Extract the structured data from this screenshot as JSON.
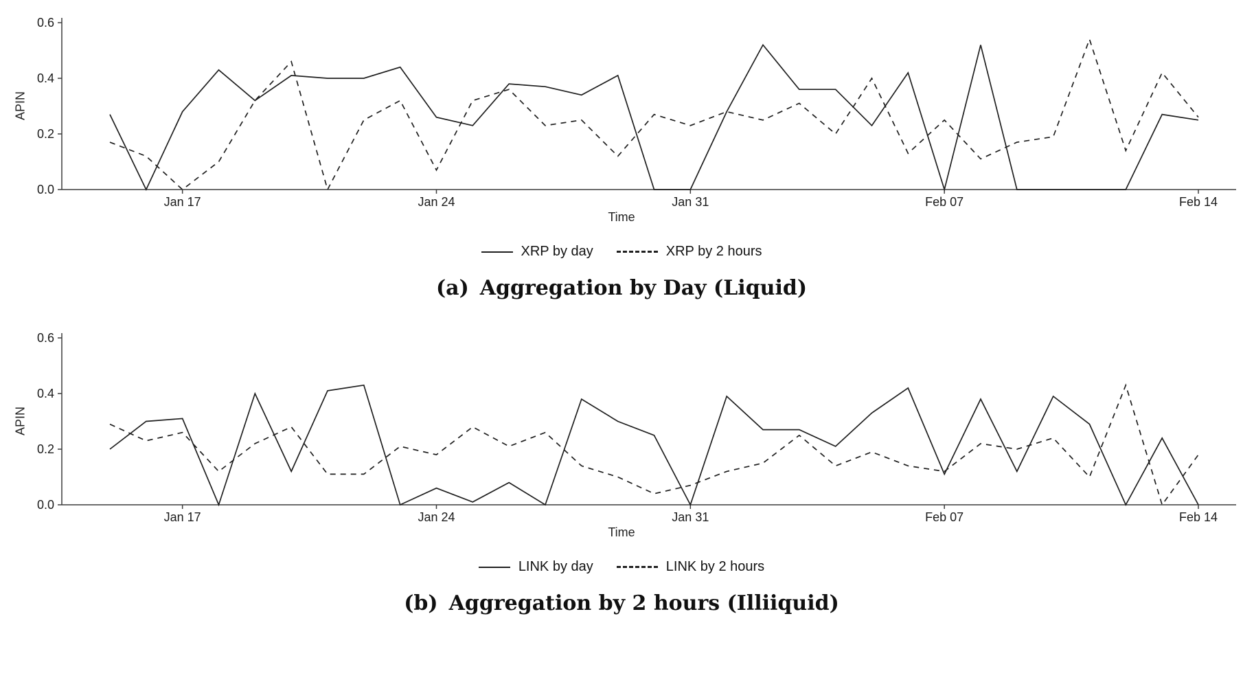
{
  "colors": {
    "line": "#1f1f1f",
    "axis": "#3c3c3c",
    "text": "#1a1a1a"
  },
  "chart_data": [
    {
      "type": "line",
      "panel": "a",
      "caption_prefix": "(a)",
      "caption": "Aggregation by Day (Liquid)",
      "xlabel": "Time",
      "ylabel": "APIN",
      "ylim": [
        0,
        0.6
      ],
      "x_start_date": "Jan 15",
      "x_step_days": 1,
      "yticks": [
        {
          "label": "0.0",
          "value": 0.0
        },
        {
          "label": "0.2",
          "value": 0.2
        },
        {
          "label": "0.4",
          "value": 0.4
        },
        {
          "label": "0.6",
          "value": 0.6
        }
      ],
      "xticks": [
        {
          "label": "Jan 17",
          "index": 2
        },
        {
          "label": "Jan 24",
          "index": 9
        },
        {
          "label": "Jan 31",
          "index": 16
        },
        {
          "label": "Feb 07",
          "index": 23
        },
        {
          "label": "Feb 14",
          "index": 30
        }
      ],
      "legend": [
        {
          "label": "XRP by day",
          "style": "solid"
        },
        {
          "label": "XRP by 2 hours",
          "style": "dashed"
        }
      ],
      "series": [
        {
          "name": "XRP by day",
          "style": "solid",
          "values": [
            0.27,
            0.0,
            0.28,
            0.43,
            0.32,
            0.41,
            0.4,
            0.4,
            0.44,
            0.26,
            0.23,
            0.38,
            0.37,
            0.34,
            0.41,
            0.0,
            0.0,
            0.28,
            0.52,
            0.36,
            0.36,
            0.23,
            0.42,
            0.0,
            0.52,
            0.0,
            0.0,
            0.0,
            0.0,
            0.27,
            0.25
          ]
        },
        {
          "name": "XRP by 2 hours",
          "style": "dashed",
          "values": [
            0.17,
            0.12,
            0.0,
            0.1,
            0.32,
            0.46,
            0.0,
            0.25,
            0.32,
            0.07,
            0.32,
            0.36,
            0.23,
            0.25,
            0.12,
            0.27,
            0.23,
            0.28,
            0.25,
            0.31,
            0.2,
            0.4,
            0.13,
            0.25,
            0.11,
            0.17,
            0.19,
            0.54,
            0.14,
            0.42,
            0.26
          ]
        }
      ]
    },
    {
      "type": "line",
      "panel": "b",
      "caption_prefix": "(b)",
      "caption": "Aggregation by 2 hours (Illiiquid)",
      "xlabel": "Time",
      "ylabel": "APIN",
      "ylim": [
        0,
        0.6
      ],
      "x_start_date": "Jan 15",
      "x_step_days": 1,
      "yticks": [
        {
          "label": "0.0",
          "value": 0.0
        },
        {
          "label": "0.2",
          "value": 0.2
        },
        {
          "label": "0.4",
          "value": 0.4
        },
        {
          "label": "0.6",
          "value": 0.6
        }
      ],
      "xticks": [
        {
          "label": "Jan 17",
          "index": 2
        },
        {
          "label": "Jan 24",
          "index": 9
        },
        {
          "label": "Jan 31",
          "index": 16
        },
        {
          "label": "Feb 07",
          "index": 23
        },
        {
          "label": "Feb 14",
          "index": 30
        }
      ],
      "legend": [
        {
          "label": "LINK by day",
          "style": "solid"
        },
        {
          "label": "LINK by 2 hours",
          "style": "dashed"
        }
      ],
      "series": [
        {
          "name": "LINK by day",
          "style": "solid",
          "values": [
            0.2,
            0.3,
            0.31,
            0.0,
            0.4,
            0.12,
            0.41,
            0.43,
            0.0,
            0.06,
            0.01,
            0.08,
            0.0,
            0.38,
            0.3,
            0.25,
            0.0,
            0.39,
            0.27,
            0.27,
            0.21,
            0.33,
            0.42,
            0.11,
            0.38,
            0.12,
            0.39,
            0.29,
            0.0,
            0.24,
            0.0
          ]
        },
        {
          "name": "LINK by 2 hours",
          "style": "dashed",
          "values": [
            0.29,
            0.23,
            0.26,
            0.12,
            0.22,
            0.28,
            0.11,
            0.11,
            0.21,
            0.18,
            0.28,
            0.21,
            0.26,
            0.14,
            0.1,
            0.04,
            0.07,
            0.12,
            0.15,
            0.25,
            0.14,
            0.19,
            0.14,
            0.12,
            0.22,
            0.2,
            0.24,
            0.1,
            0.43,
            0.0,
            0.18
          ]
        }
      ]
    }
  ]
}
